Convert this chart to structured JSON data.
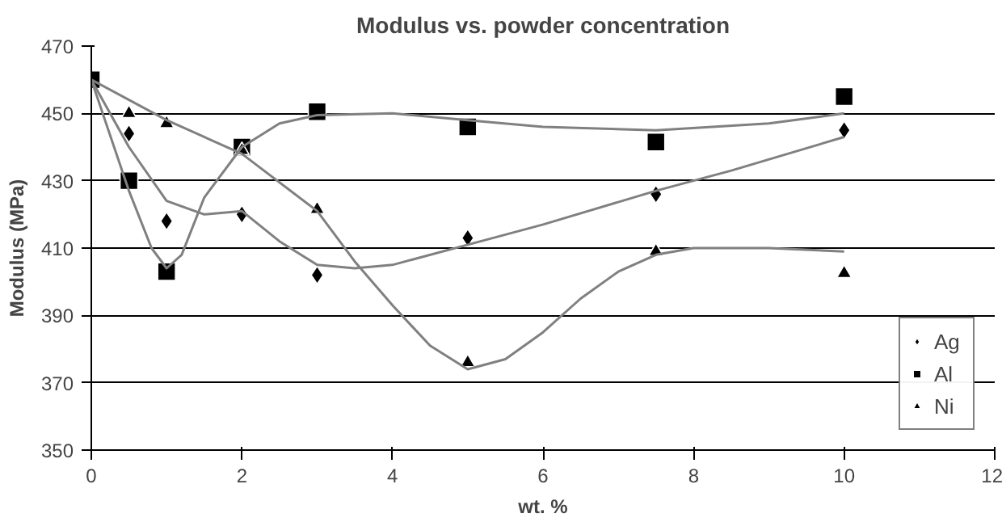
{
  "chart_data": {
    "type": "scatter",
    "title": "Modulus vs. powder concentration",
    "xlabel": "wt. %",
    "ylabel": "Modulus (MPa)",
    "x": [
      0,
      0.5,
      1,
      2,
      3,
      5,
      7.5,
      10
    ],
    "xlim": [
      0,
      12
    ],
    "xticks": [
      0,
      2,
      4,
      6,
      8,
      10,
      12
    ],
    "ylim": [
      350,
      470
    ],
    "yticks": [
      350,
      370,
      390,
      410,
      430,
      450,
      470
    ],
    "grid": "y",
    "legend": "bottom right",
    "series": [
      {
        "name": "Ag",
        "color": "#000000",
        "marker": "diamond",
        "values": [
          null,
          444,
          418,
          420,
          402,
          413,
          426,
          445
        ]
      },
      {
        "name": "Al",
        "color": "#000000",
        "marker": "square",
        "values": [
          460,
          430,
          403,
          440,
          450.5,
          446,
          441.5,
          455
        ]
      },
      {
        "name": "Ni",
        "color": "#000000",
        "marker": "triangle",
        "values": [
          null,
          450,
          447,
          439,
          421.5,
          376,
          409,
          402.5
        ]
      },
      {
        "type": "line",
        "color": "#808080",
        "x": [
          0,
          0.5,
          1,
          1.5,
          2,
          2.5,
          3,
          3.5,
          4,
          5,
          6,
          7.5,
          8.5,
          10
        ],
        "values": [
          460,
          440,
          424,
          420,
          421,
          412,
          405,
          404,
          405,
          411,
          417,
          427,
          433,
          443
        ]
      },
      {
        "type": "line",
        "color": "#808080",
        "x": [
          0,
          0.5,
          0.8,
          1,
          1.2,
          1.5,
          2,
          2.5,
          3,
          4,
          5,
          6,
          7.5,
          9,
          10
        ],
        "values": [
          460,
          427,
          410,
          404,
          408,
          425,
          440,
          447,
          449.5,
          450,
          448,
          446,
          445,
          447,
          450
        ]
      },
      {
        "type": "line",
        "color": "#808080",
        "x": [
          0,
          1,
          2,
          3,
          3.5,
          4,
          4.5,
          5,
          5.5,
          6,
          6.5,
          7,
          7.5,
          8,
          9,
          10
        ],
        "values": [
          460,
          448,
          438,
          421,
          406,
          393,
          381,
          374,
          377,
          385,
          395,
          403,
          408,
          410,
          410,
          409
        ]
      }
    ]
  }
}
